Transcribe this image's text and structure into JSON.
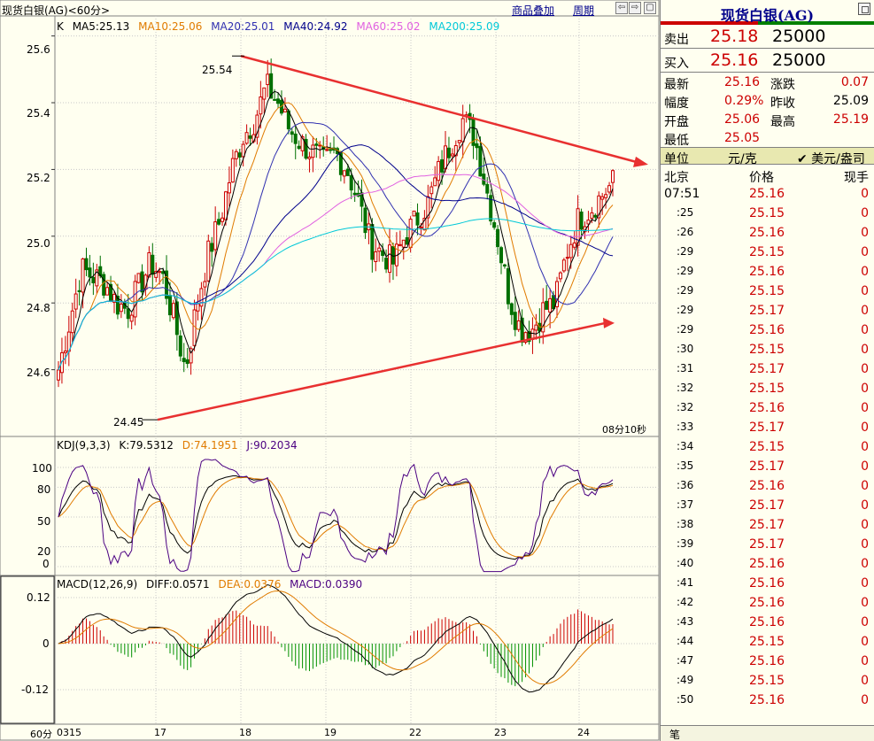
{
  "toolbar": {
    "title": "现货白银(AG)<60分>",
    "overlay_label": "商品叠加",
    "period_label": "周期",
    "nav_buttons": [
      "⇦",
      "⇨",
      "▢"
    ]
  },
  "main_panel": {
    "prefix": "K",
    "ma": [
      {
        "label": "MA5:25.13",
        "color": "#000000"
      },
      {
        "label": "MA10:25.06",
        "color": "#e07b00"
      },
      {
        "label": "MA20:25.01",
        "color": "#3030b0"
      },
      {
        "label": "MA40:24.92",
        "color": "#00008b"
      },
      {
        "label": "MA60:25.02",
        "color": "#e060e0"
      },
      {
        "label": "MA200:25.09",
        "color": "#00c8d8"
      }
    ],
    "y_ticks": [
      "25.6",
      "25.4",
      "25.2",
      "25.0",
      "24.8",
      "24.6"
    ],
    "high_annotation": "25.54",
    "low_annotation": "24.45",
    "countdown": "08分10秒"
  },
  "kdj": {
    "header": "KDJ(9,3,3)",
    "k": "K:79.5312",
    "d": "D:74.1951",
    "j": "J:90.2034",
    "y_ticks": [
      "100",
      "80",
      "50",
      "20",
      "0"
    ]
  },
  "macd": {
    "header": "MACD(12,26,9)",
    "diff": "DIFF:0.0571",
    "dea": "DEA:0.0376",
    "macd": "MACD:0.0390",
    "y_ticks": [
      "0.12",
      "0",
      "-0.12"
    ]
  },
  "x_axis": {
    "period_label": "60分",
    "dates": [
      "0315",
      "17",
      "18",
      "19",
      "22",
      "23",
      "24"
    ]
  },
  "colors": {
    "up": "#cc0000",
    "down": "#007000",
    "trendline": "#e83030",
    "grid": "#c8c8c8"
  },
  "panel": {
    "title": "现货白银(AG)",
    "sell_label": "卖出",
    "sell_price": "25.18",
    "sell_volume": "25000",
    "buy_label": "买入",
    "buy_price": "25.16",
    "buy_volume": "25000",
    "stats": [
      {
        "l1": "最新",
        "v1": "25.16",
        "l2": "涨跌",
        "v2": "0.07"
      },
      {
        "l1": "幅度",
        "v1": "0.29%",
        "l2": "昨收",
        "v2": "25.09"
      },
      {
        "l1": "开盘",
        "v1": "25.06",
        "l2": "最高",
        "v2": "25.19"
      },
      {
        "l1": "最低",
        "v1": "25.05",
        "l2": "",
        "v2": ""
      }
    ],
    "unit_label": "单位",
    "unit_value": "元/克",
    "currency_toggle": "✔ 美元/盎司",
    "tick_headers": {
      "location": "北京",
      "price": "价格",
      "volume": "现手"
    },
    "ticks": [
      {
        "time": "07:51",
        "price": "25.16",
        "volume": "0"
      },
      {
        "time": ":25",
        "price": "25.15",
        "volume": "0"
      },
      {
        "time": ":26",
        "price": "25.16",
        "volume": "0"
      },
      {
        "time": ":29",
        "price": "25.15",
        "volume": "0"
      },
      {
        "time": ":29",
        "price": "25.16",
        "volume": "0"
      },
      {
        "time": ":29",
        "price": "25.15",
        "volume": "0"
      },
      {
        "time": ":29",
        "price": "25.17",
        "volume": "0"
      },
      {
        "time": ":29",
        "price": "25.16",
        "volume": "0"
      },
      {
        "time": ":30",
        "price": "25.15",
        "volume": "0"
      },
      {
        "time": ":31",
        "price": "25.17",
        "volume": "0"
      },
      {
        "time": ":32",
        "price": "25.15",
        "volume": "0"
      },
      {
        "time": ":32",
        "price": "25.16",
        "volume": "0"
      },
      {
        "time": ":33",
        "price": "25.17",
        "volume": "0"
      },
      {
        "time": ":34",
        "price": "25.15",
        "volume": "0"
      },
      {
        "time": ":35",
        "price": "25.17",
        "volume": "0"
      },
      {
        "time": ":36",
        "price": "25.16",
        "volume": "0"
      },
      {
        "time": ":37",
        "price": "25.17",
        "volume": "0"
      },
      {
        "time": ":38",
        "price": "25.17",
        "volume": "0"
      },
      {
        "time": ":39",
        "price": "25.17",
        "volume": "0"
      },
      {
        "time": ":40",
        "price": "25.16",
        "volume": "0"
      },
      {
        "time": ":41",
        "price": "25.16",
        "volume": "0"
      },
      {
        "time": ":42",
        "price": "25.16",
        "volume": "0"
      },
      {
        "time": ":43",
        "price": "25.16",
        "volume": "0"
      },
      {
        "time": ":44",
        "price": "25.15",
        "volume": "0"
      },
      {
        "time": ":47",
        "price": "25.16",
        "volume": "0"
      },
      {
        "time": ":49",
        "price": "25.15",
        "volume": "0"
      },
      {
        "time": ":50",
        "price": "25.16",
        "volume": "0"
      }
    ],
    "footer_label": "笔"
  },
  "chart_data": {
    "type": "candlestick",
    "interval": "60min",
    "price_axis": {
      "ylim": [
        24.4,
        25.66
      ],
      "ticks": [
        25.6,
        25.4,
        25.2,
        25.0,
        24.8,
        24.6
      ]
    },
    "trendlines": [
      {
        "name": "resistance",
        "from": {
          "price": 25.54
        },
        "to": {
          "price": 25.22
        }
      },
      {
        "name": "support",
        "from": {
          "price": 24.45
        },
        "to": {
          "price": 24.74
        }
      }
    ],
    "close_path": [
      24.6,
      24.75,
      24.9,
      24.88,
      24.86,
      24.8,
      24.78,
      24.85,
      24.92,
      24.88,
      24.75,
      24.6,
      24.8,
      24.95,
      25.05,
      25.2,
      25.3,
      25.35,
      25.45,
      25.4,
      25.32,
      25.28,
      25.25,
      25.22,
      25.25,
      25.2,
      25.1,
      24.98,
      24.95,
      24.92,
      25.0,
      25.05,
      25.1,
      25.2,
      25.28,
      25.35,
      25.3,
      25.15,
      25.0,
      24.82,
      24.72,
      24.72,
      24.78,
      24.8,
      24.95,
      25.05,
      25.08,
      25.12,
      25.16
    ],
    "kdj_range": [
      0,
      100
    ],
    "macd_range": [
      -0.17,
      0.15
    ]
  }
}
